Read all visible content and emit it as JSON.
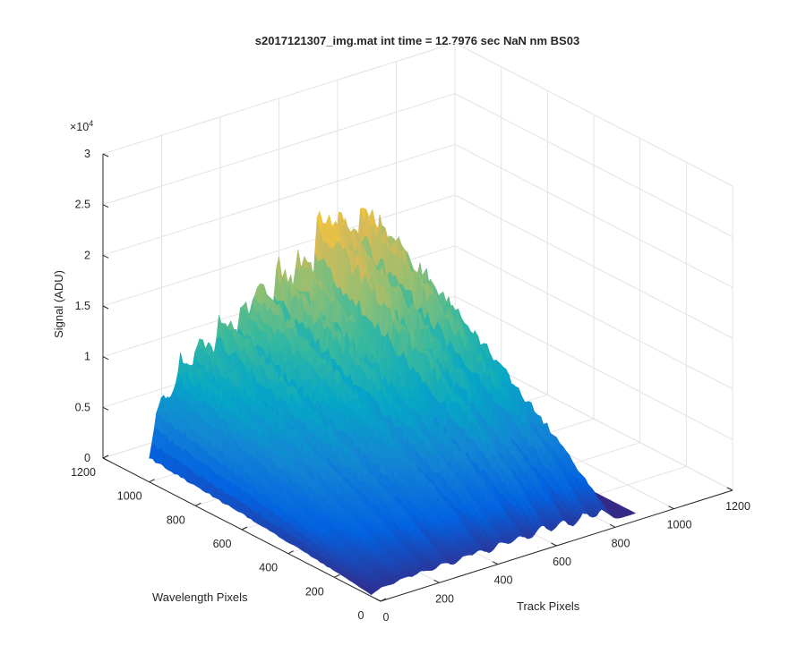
{
  "chart_data": {
    "type": "surface",
    "title": "s2017121307_img.mat int time = 12.7976 sec  NaN nm BS03",
    "xlabel": "Track Pixels",
    "ylabel": "Wavelength Pixels",
    "zlabel": "Signal (ADU)",
    "z_exponent_label": "×10",
    "z_exponent_power": "4",
    "xlim": [
      0,
      1200
    ],
    "ylim": [
      0,
      1200
    ],
    "zlim": [
      0,
      30000
    ],
    "x_ticks": [
      "0",
      "200",
      "400",
      "600",
      "800",
      "1000",
      "1200"
    ],
    "y_ticks": [
      "0",
      "200",
      "400",
      "600",
      "800",
      "1000",
      "1200"
    ],
    "z_ticks": [
      "0",
      "0.5",
      "1",
      "1.5",
      "2",
      "2.5",
      "3"
    ],
    "colormap": "parula",
    "grid": true,
    "tracks": [
      {
        "center": 40,
        "width": 26,
        "peak": 9000
      },
      {
        "center": 110,
        "width": 26,
        "peak": 12500
      },
      {
        "center": 175,
        "width": 24,
        "peak": 13500
      },
      {
        "center": 245,
        "width": 24,
        "peak": 16000
      },
      {
        "center": 315,
        "width": 22,
        "peak": 15500
      },
      {
        "center": 370,
        "width": 22,
        "peak": 17500
      },
      {
        "center": 440,
        "width": 22,
        "peak": 19500
      },
      {
        "center": 505,
        "width": 24,
        "peak": 20000
      },
      {
        "center": 580,
        "width": 22,
        "peak": 24500
      },
      {
        "center": 650,
        "width": 22,
        "peak": 23000
      },
      {
        "center": 725,
        "width": 22,
        "peak": 24000
      },
      {
        "center": 790,
        "width": 20,
        "peak": 21000
      }
    ]
  },
  "colors": {
    "parula": [
      "#352a87",
      "#0363e1",
      "#1485d4",
      "#06a7c6",
      "#38b99e",
      "#92bf73",
      "#d9ba56",
      "#fcce2e",
      "#f9fb0e"
    ],
    "axis": "#262626",
    "grid": "#e3e3e3"
  }
}
